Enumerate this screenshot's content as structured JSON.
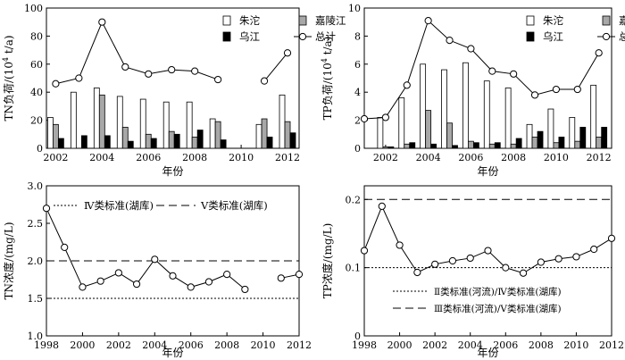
{
  "chart_data": [
    {
      "type": "bar+line",
      "xlabel": "年份",
      "ylabel": "TN负荷/(10⁴ t/a)",
      "ylim": [
        0,
        100
      ],
      "yticks": [
        0,
        20,
        40,
        60,
        80,
        100
      ],
      "xticks": [
        2002,
        2004,
        2006,
        2008,
        2010,
        2012
      ],
      "years": [
        2002,
        2003,
        2004,
        2005,
        2006,
        2007,
        2008,
        2009,
        2010,
        2011,
        2012
      ],
      "bar_series": [
        {
          "name": "朱沱",
          "color": "#ffffff",
          "values": [
            22,
            40,
            43,
            37,
            35,
            33,
            33,
            21,
            0,
            17,
            38
          ]
        },
        {
          "name": "嘉陵江",
          "color": "#a8a8a8",
          "values": [
            17,
            0,
            38,
            15,
            10,
            12,
            8,
            19,
            0,
            21,
            19
          ]
        },
        {
          "name": "乌江",
          "color": "#000000",
          "values": [
            7,
            9,
            9,
            5,
            7,
            10,
            13,
            6,
            0,
            8,
            11
          ]
        }
      ],
      "line_series": {
        "name": "总计",
        "values": [
          46,
          50,
          90,
          58,
          53,
          56,
          55,
          49,
          null,
          48,
          68
        ]
      },
      "legend": "top"
    },
    {
      "type": "bar+line",
      "xlabel": "年份",
      "ylabel": "TP负荷/(10⁴ t/a)",
      "ylim": [
        0,
        10
      ],
      "yticks": [
        0,
        2,
        4,
        6,
        8,
        10
      ],
      "xticks": [
        2002,
        2004,
        2006,
        2008,
        2010,
        2012
      ],
      "years": [
        2001,
        2002,
        2003,
        2004,
        2005,
        2006,
        2007,
        2008,
        2009,
        2010,
        2011,
        2012
      ],
      "bar_series": [
        {
          "name": "朱沱",
          "color": "#ffffff",
          "values": [
            null,
            2.2,
            3.6,
            6.0,
            5.6,
            6.1,
            4.8,
            4.3,
            1.7,
            2.8,
            2.2,
            4.5
          ]
        },
        {
          "name": "嘉陵江",
          "color": "#a8a8a8",
          "values": [
            null,
            0.1,
            0.3,
            2.7,
            1.8,
            0.5,
            0.3,
            0.3,
            0.8,
            0.4,
            0.5,
            0.8
          ]
        },
        {
          "name": "乌江",
          "color": "#000000",
          "values": [
            null,
            0.1,
            0.4,
            0.3,
            0.2,
            0.4,
            0.4,
            0.7,
            1.2,
            0.8,
            1.5,
            1.5
          ]
        }
      ],
      "line_series": {
        "name": "总计",
        "values": [
          2.1,
          2.2,
          4.5,
          9.1,
          7.7,
          7.1,
          5.5,
          5.3,
          3.8,
          4.2,
          4.2,
          6.8
        ]
      },
      "legend": "top"
    },
    {
      "type": "line",
      "xlabel": "年份",
      "ylabel": "TN浓度/(mg/L)",
      "ylim": [
        1.0,
        3.0
      ],
      "yticks": [
        1.0,
        1.5,
        2.0,
        2.5,
        3.0
      ],
      "ytick_labels": [
        "1.0",
        "1.5",
        "2.0",
        "2.5",
        "3.0"
      ],
      "xlim": [
        1998,
        2012
      ],
      "xticks": [
        1998,
        2000,
        2002,
        2004,
        2006,
        2008,
        2010,
        2012
      ],
      "series": [
        {
          "years": [
            1998,
            1999,
            2000,
            2001,
            2002,
            2003,
            2004,
            2005,
            2006,
            2007,
            2008,
            2009
          ],
          "values": [
            2.7,
            2.18,
            1.65,
            1.73,
            1.84,
            1.69,
            2.02,
            1.8,
            1.65,
            1.72,
            1.82,
            1.62
          ]
        },
        {
          "years": [
            2011,
            2012
          ],
          "values": [
            1.77,
            1.82
          ]
        }
      ],
      "reference_lines": [
        {
          "name": "Ⅳ类标准(湖库)",
          "value": 1.5,
          "style": "dotted"
        },
        {
          "name": "Ⅴ类标准(湖库)",
          "value": 2.0,
          "style": "dashed"
        }
      ],
      "legend": "top"
    },
    {
      "type": "line",
      "xlabel": "年份",
      "ylabel": "TP浓度/(mg/L)",
      "ylim": [
        0,
        0.22
      ],
      "yticks": [
        0,
        0.1,
        0.2
      ],
      "ytick_labels": [
        "0",
        "0.1",
        "0.2"
      ],
      "xlim": [
        1998,
        2012
      ],
      "xticks": [
        1998,
        2000,
        2002,
        2004,
        2006,
        2008,
        2010,
        2012
      ],
      "series": [
        {
          "years": [
            1998,
            1999,
            2000,
            2001,
            2002,
            2003,
            2004,
            2005,
            2006,
            2007,
            2008,
            2009,
            2010,
            2011,
            2012
          ],
          "values": [
            0.125,
            0.19,
            0.133,
            0.093,
            0.105,
            0.11,
            0.114,
            0.125,
            0.1,
            0.092,
            0.108,
            0.113,
            0.116,
            0.127,
            0.143
          ]
        }
      ],
      "reference_lines": [
        {
          "name": "Ⅱ类标准(河流)/Ⅳ类标准(湖库)",
          "value": 0.1,
          "style": "dotted"
        },
        {
          "name": "Ⅲ类标准(河流)/Ⅴ类标准(湖库)",
          "value": 0.2,
          "style": "dashed"
        }
      ],
      "legend": "bottom-right"
    }
  ]
}
